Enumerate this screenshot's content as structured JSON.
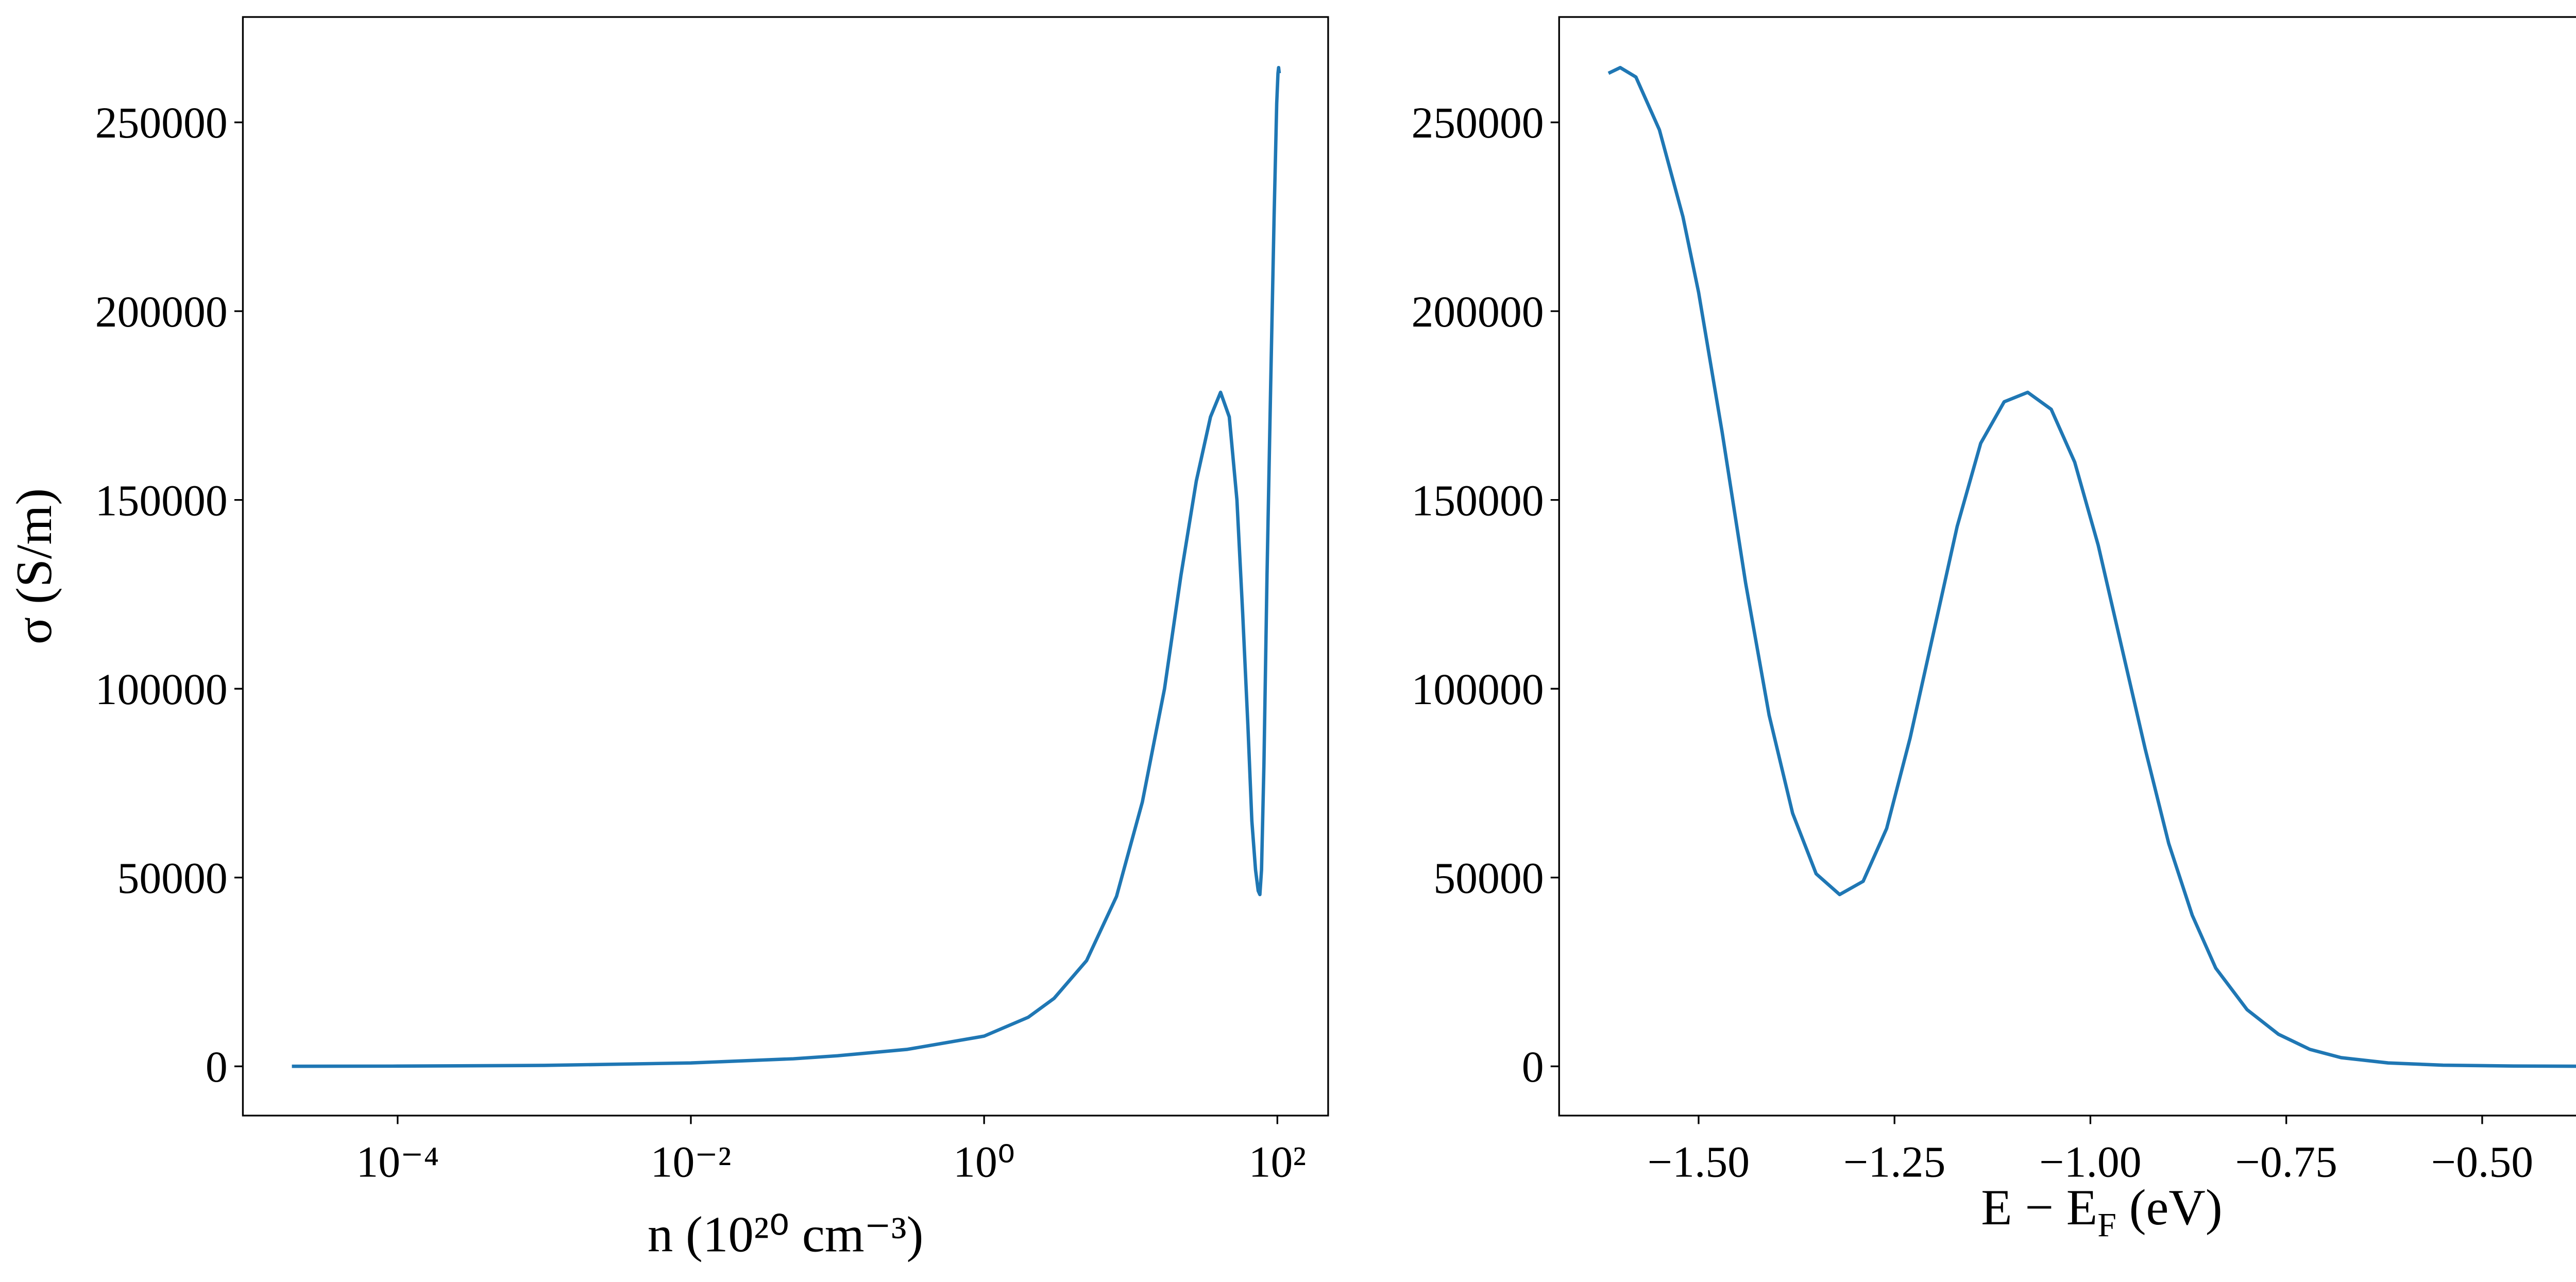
{
  "chart_data": [
    {
      "type": "line",
      "xscale": "log",
      "color": "#1f77b4",
      "ylabel": "σ (S/m)",
      "xlabel": "n (10²⁰ cm⁻³)",
      "xlim": [
        8.8e-06,
        222
      ],
      "ylim": [
        -13040,
        277900
      ],
      "xticks": [
        {
          "value": 0.0001,
          "label": "10⁻⁴"
        },
        {
          "value": 0.01,
          "label": "10⁻²"
        },
        {
          "value": 1,
          "label": "10⁰"
        },
        {
          "value": 100,
          "label": "10²"
        }
      ],
      "yticks": [
        0,
        50000,
        100000,
        150000,
        200000,
        250000
      ],
      "x": [
        1.9e-05,
        0.0001,
        0.001,
        0.01,
        0.05,
        0.1,
        0.3,
        1,
        2,
        3,
        5,
        8,
        12,
        17,
        22,
        28,
        35,
        41,
        47,
        53,
        58,
        63,
        67,
        71,
        74,
        76,
        78,
        81,
        85,
        90,
        95,
        99,
        101,
        102,
        103
      ],
      "values": [
        20,
        60,
        250,
        900,
        2000,
        2800,
        4500,
        8000,
        13000,
        18000,
        28000,
        45000,
        70000,
        100000,
        130000,
        155000,
        172000,
        178500,
        172000,
        150000,
        120000,
        90000,
        65000,
        52000,
        46500,
        45500,
        52000,
        80000,
        130000,
        180000,
        225000,
        255000,
        263000,
        264500,
        263000
      ]
    },
    {
      "type": "line",
      "color": "#1f77b4",
      "xlabel": [
        "E − E",
        "F",
        " (eV)"
      ],
      "xlim": [
        -1.678,
        -0.293
      ],
      "ylim": [
        -13040,
        277900
      ],
      "xticks": [
        {
          "value": -1.5,
          "label": "−1.50"
        },
        {
          "value": -1.25,
          "label": "−1.25"
        },
        {
          "value": -1.0,
          "label": "−1.00"
        },
        {
          "value": -0.75,
          "label": "−0.75"
        },
        {
          "value": -0.5,
          "label": "−0.50"
        }
      ],
      "yticks": [
        0,
        50000,
        100000,
        150000,
        200000,
        250000
      ],
      "x": [
        -1.615,
        -1.6,
        -1.58,
        -1.55,
        -1.52,
        -1.5,
        -1.47,
        -1.44,
        -1.41,
        -1.38,
        -1.35,
        -1.32,
        -1.29,
        -1.26,
        -1.23,
        -1.2,
        -1.17,
        -1.14,
        -1.11,
        -1.08,
        -1.05,
        -1.02,
        -0.99,
        -0.96,
        -0.93,
        -0.9,
        -0.87,
        -0.84,
        -0.8,
        -0.76,
        -0.72,
        -0.68,
        -0.62,
        -0.55,
        -0.46,
        -0.36
      ],
      "values": [
        263000,
        264500,
        262000,
        248000,
        225000,
        205000,
        168000,
        128000,
        93000,
        67000,
        51000,
        45500,
        49000,
        63000,
        87000,
        115000,
        143000,
        165000,
        176000,
        178500,
        174000,
        160000,
        138000,
        111000,
        84000,
        59000,
        40000,
        26000,
        15000,
        8500,
        4500,
        2300,
        900,
        300,
        80,
        20
      ]
    }
  ]
}
